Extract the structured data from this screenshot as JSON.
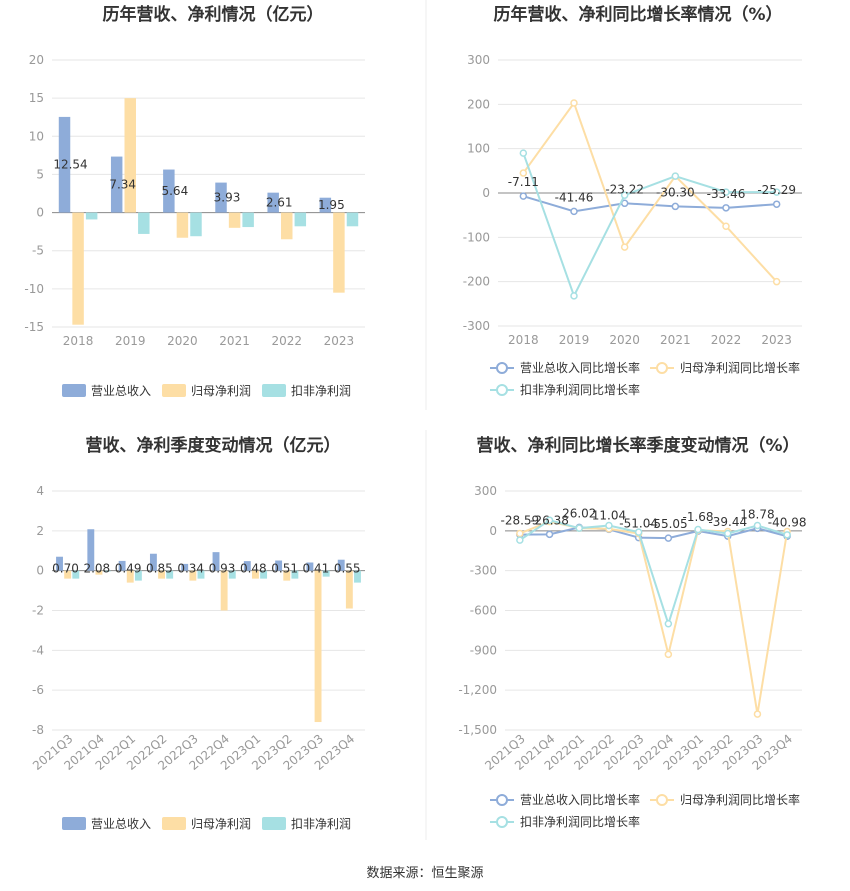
{
  "charts": [
    {
      "title": "历年营收、净利情况（亿元）",
      "chart_data": {
        "type": "bar",
        "categories": [
          "2018",
          "2019",
          "2020",
          "2021",
          "2022",
          "2023"
        ],
        "series": [
          {
            "name": "营业总收入",
            "values": [
              12.54,
              7.34,
              5.64,
              3.93,
              2.61,
              1.95
            ],
            "color": "#8eacd9",
            "labeled": true
          },
          {
            "name": "归母净利润",
            "values": [
              -14.7,
              15.0,
              -3.3,
              -2.0,
              -3.5,
              -10.5
            ],
            "color": "#fddea5",
            "labeled": false
          },
          {
            "name": "扣非净利润",
            "values": [
              -0.9,
              -2.8,
              -3.1,
              -1.9,
              -1.8,
              -1.8
            ],
            "color": "#a6e0e3",
            "labeled": false
          }
        ],
        "ylim": [
          -15,
          20
        ],
        "yticks": [
          "20",
          "15",
          "10",
          "5",
          "0",
          "-5",
          "-10",
          "-15"
        ],
        "ytick_values": [
          20,
          15,
          10,
          5,
          0,
          -5,
          -10,
          -15
        ],
        "data_labels": [
          "12.54",
          "7.34",
          "5.64",
          "3.93",
          "2.61",
          "1.95"
        ],
        "legend_position": "bottom"
      }
    },
    {
      "title": "历年营收、净利同比增长率情况（%）",
      "chart_data": {
        "type": "line",
        "categories": [
          "2018",
          "2019",
          "2020",
          "2021",
          "2022",
          "2023"
        ],
        "series": [
          {
            "name": "营业总收入同比增长率",
            "values": [
              -7.11,
              -41.46,
              -23.22,
              -30.3,
              -33.46,
              -25.29
            ],
            "color": "#8eacd9",
            "labeled": true
          },
          {
            "name": "归母净利润同比增长率",
            "values": [
              45,
              203,
              -122,
              38,
              -75,
              -200
            ],
            "color": "#fddea5",
            "labeled": false
          },
          {
            "name": "扣非净利润同比增长率",
            "values": [
              90,
              -232,
              -5,
              38,
              2,
              2
            ],
            "color": "#a6e0e3",
            "labeled": false
          }
        ],
        "ylim": [
          -300,
          300
        ],
        "yticks": [
          "300",
          "200",
          "100",
          "0",
          "-100",
          "-200",
          "-300"
        ],
        "ytick_values": [
          300,
          200,
          100,
          0,
          -100,
          -200,
          -300
        ],
        "data_labels": [
          "-7.11",
          "-41.46",
          "-23.22",
          "-30.30",
          "-33.46",
          "-25.29"
        ],
        "legend_position": "bottom"
      }
    },
    {
      "title": "营收、净利季度变动情况（亿元）",
      "chart_data": {
        "type": "bar",
        "categories": [
          "2021Q3",
          "2021Q4",
          "2022Q1",
          "2022Q2",
          "2022Q3",
          "2022Q4",
          "2023Q1",
          "2023Q2",
          "2023Q3",
          "2023Q4"
        ],
        "series": [
          {
            "name": "营业总收入",
            "values": [
              0.7,
              2.08,
              0.49,
              0.85,
              0.34,
              0.93,
              0.48,
              0.51,
              0.41,
              0.55
            ],
            "color": "#8eacd9",
            "labeled": true
          },
          {
            "name": "归母净利润",
            "values": [
              -0.4,
              -0.2,
              -0.6,
              -0.4,
              -0.5,
              -2.0,
              -0.4,
              -0.5,
              -7.6,
              -1.9
            ],
            "color": "#fddea5",
            "labeled": false
          },
          {
            "name": "扣非净利润",
            "values": [
              -0.4,
              -0.05,
              -0.5,
              -0.4,
              -0.4,
              -0.4,
              -0.4,
              -0.4,
              -0.3,
              -0.6
            ],
            "color": "#a6e0e3",
            "labeled": false
          }
        ],
        "ylim": [
          -8,
          4
        ],
        "yticks": [
          "4",
          "2",
          "0",
          "-2",
          "-4",
          "-6",
          "-8"
        ],
        "ytick_values": [
          4,
          2,
          0,
          -2,
          -4,
          -6,
          -8
        ],
        "data_labels": [
          "0.70",
          "2.08",
          "0.49",
          "0.85",
          "0.34",
          "0.93",
          "0.48",
          "0.51",
          "0.41",
          "0.55"
        ],
        "legend_position": "bottom"
      }
    },
    {
      "title": "营收、净利同比增长率季度变动情况（%）",
      "chart_data": {
        "type": "line",
        "categories": [
          "2021Q3",
          "2021Q4",
          "2022Q1",
          "2022Q2",
          "2022Q3",
          "2022Q4",
          "2023Q1",
          "2023Q2",
          "2023Q3",
          "2023Q4"
        ],
        "series": [
          {
            "name": "营业总收入同比增长率",
            "values": [
              -28.59,
              -26.38,
              26.02,
              11.04,
              -51.04,
              -55.05,
              -1.68,
              -39.44,
              18.78,
              -40.98
            ],
            "color": "#8eacd9",
            "labeled": true
          },
          {
            "name": "归母净利润同比增长率",
            "values": [
              -20,
              70,
              20,
              15,
              -20,
              -930,
              5,
              -5,
              -1380,
              -5
            ],
            "color": "#fddea5",
            "labeled": false
          },
          {
            "name": "扣非净利润同比增长率",
            "values": [
              -70,
              80,
              20,
              40,
              -10,
              -700,
              10,
              -20,
              40,
              -30
            ],
            "color": "#a6e0e3",
            "labeled": false
          }
        ],
        "ylim": [
          -1500,
          300
        ],
        "yticks": [
          "300",
          "0",
          "-300",
          "-600",
          "-900",
          "-1,200",
          "-1,500"
        ],
        "ytick_values": [
          300,
          0,
          -300,
          -600,
          -900,
          -1200,
          -1500
        ],
        "data_labels": [
          "-28.59",
          "-26.38",
          "26.02",
          "11.04",
          "-51.04",
          "-55.05",
          "-1.68",
          "-39.44",
          "18.78",
          "-40.98"
        ],
        "legend_position": "bottom"
      }
    }
  ],
  "colors": {
    "grid": "#e6e6e6",
    "axis": "#999999",
    "text": "#333333",
    "tick": "#999999"
  },
  "source": "数据来源：恒生聚源"
}
